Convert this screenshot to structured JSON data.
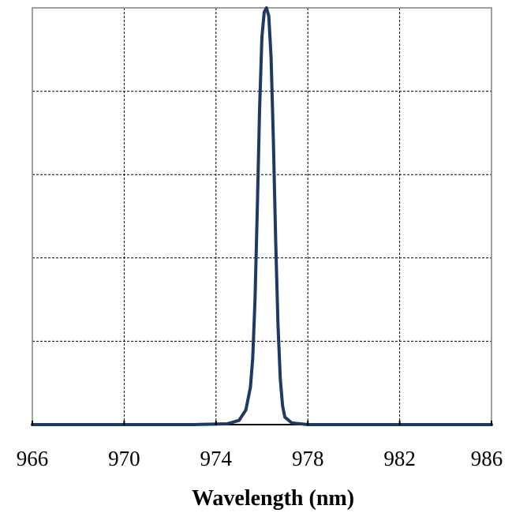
{
  "chart_data": {
    "type": "line",
    "title": "",
    "xlabel": "Wavelength (nm)",
    "ylabel": "",
    "xlim": [
      966,
      986
    ],
    "ylim": [
      0,
      1
    ],
    "x_ticks": [
      966,
      970,
      974,
      978,
      982,
      986
    ],
    "x_tick_labels": [
      "966",
      "970",
      "974",
      "978",
      "982",
      "986"
    ],
    "y_gridlines": [
      0.2,
      0.4,
      0.6,
      0.8
    ],
    "grid": true,
    "grid_style": "dashed",
    "legend": "none",
    "series": [
      {
        "color": "#1f3864",
        "x": [
          966.0,
          970.0,
          973.0,
          974.5,
          975.0,
          975.3,
          975.5,
          975.6,
          975.7,
          975.8,
          975.9,
          976.0,
          976.1,
          976.2,
          976.3,
          976.4,
          976.5,
          976.6,
          976.7,
          976.8,
          976.9,
          977.0,
          977.3,
          978.0,
          982.0,
          986.0
        ],
        "y": [
          0.0,
          0.0,
          0.0,
          0.002,
          0.01,
          0.035,
          0.09,
          0.16,
          0.3,
          0.52,
          0.76,
          0.93,
          0.99,
          1.0,
          0.98,
          0.88,
          0.68,
          0.44,
          0.24,
          0.11,
          0.045,
          0.018,
          0.004,
          0.0,
          0.0,
          0.0
        ]
      }
    ]
  }
}
